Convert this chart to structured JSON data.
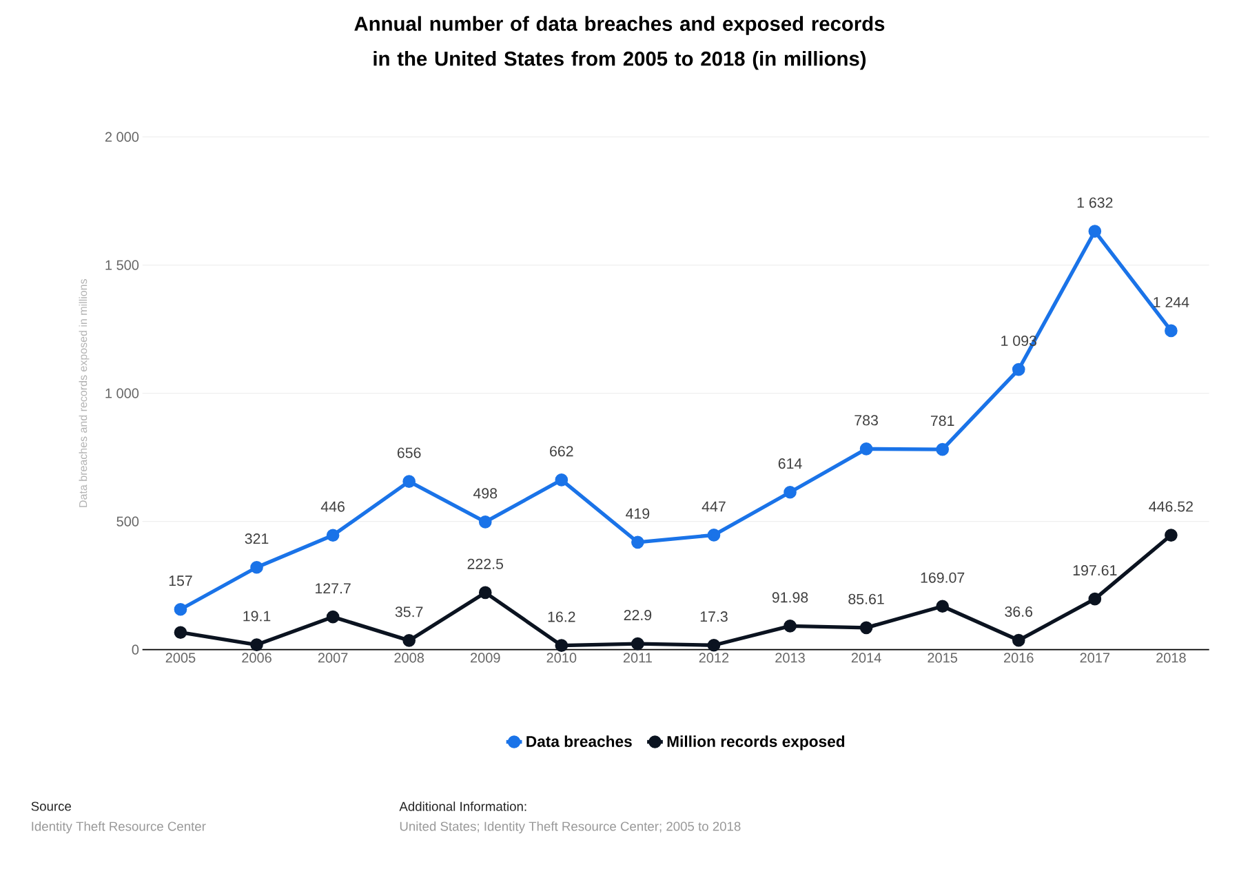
{
  "chart_data": {
    "type": "line",
    "title": "Annual number of data breaches and exposed records in the United States from 2005 to 2018 (in millions)",
    "ylabel": "Data breaches and records exposed in millions",
    "categories": [
      "2005",
      "2006",
      "2007",
      "2008",
      "2009",
      "2010",
      "2011",
      "2012",
      "2013",
      "2014",
      "2015",
      "2016",
      "2017",
      "2018"
    ],
    "series": [
      {
        "name": "Data breaches",
        "color": "#1a73e8",
        "values": [
          157,
          321,
          446,
          656,
          498,
          662,
          419,
          447,
          614,
          783,
          781,
          1093,
          1632,
          1244
        ],
        "value_labels": [
          "157",
          "321",
          "446",
          "656",
          "498",
          "662",
          "419",
          "447",
          "614",
          "783",
          "781",
          "1 093",
          "1 632",
          "1 244"
        ]
      },
      {
        "name": "Million records exposed",
        "color": "#0b1320",
        "values": [
          67,
          19.1,
          127.7,
          35.7,
          222.5,
          16.2,
          22.9,
          17.3,
          91.98,
          85.61,
          169.07,
          36.6,
          197.61,
          446.52
        ],
        "value_labels": [
          null,
          "19.1",
          "127.7",
          "35.7",
          "222.5",
          "16.2",
          "22.9",
          "17.3",
          "91.98",
          "85.61",
          "169.07",
          "36.6",
          "197.61",
          "446.52"
        ]
      }
    ],
    "ylim": [
      0,
      2000
    ],
    "yticks": [
      0,
      500,
      {
        "value": 1000,
        "label": "1 000"
      },
      {
        "value": 1500,
        "label": "1 500"
      },
      {
        "value": 2000,
        "label": "2 000"
      }
    ],
    "grid": "y",
    "legend": "bottom",
    "marker": "circle",
    "line_style": "solid",
    "annotations": [
      "Source",
      "Identity Theft Resource Center",
      "Additional Information:",
      "United States; Identity Theft Resource Center; 2005 to 2018"
    ]
  }
}
